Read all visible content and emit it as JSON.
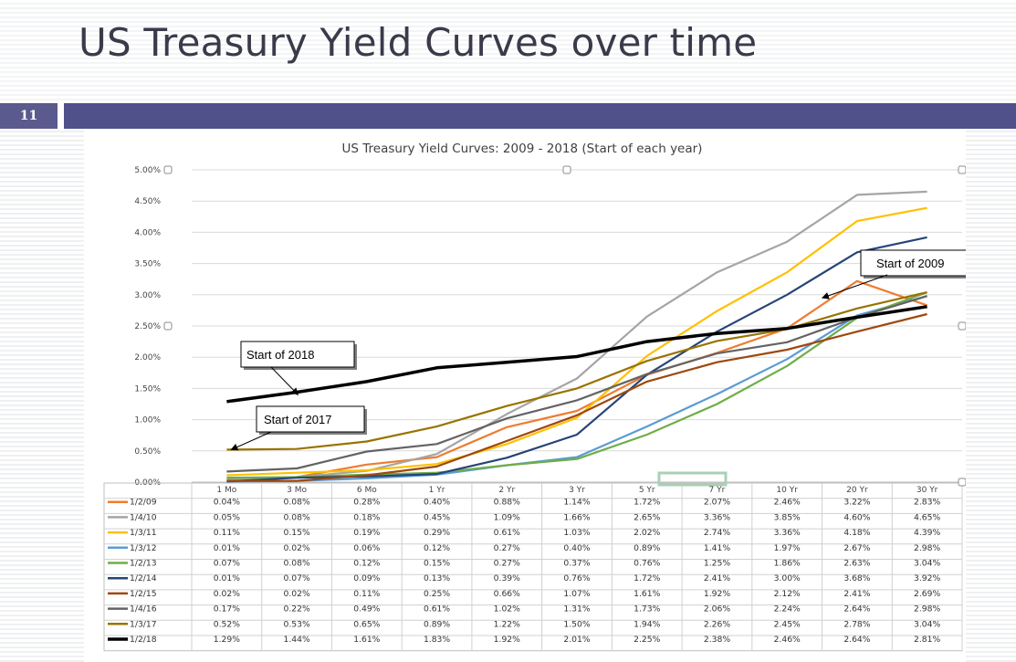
{
  "slide": {
    "title": "US Treasury Yield Curves over time",
    "page_number": "11",
    "header_bar_color": "#50508a"
  },
  "chart_data": {
    "type": "line",
    "title": "US Treasury Yield Curves: 2009 - 2018 (Start of each year)",
    "xlabel": "",
    "ylabel": "",
    "categories": [
      "1 Mo",
      "3 Mo",
      "6 Mo",
      "1 Yr",
      "2 Yr",
      "3 Yr",
      "5 Yr",
      "7 Yr",
      "10 Yr",
      "20 Yr",
      "30 Yr"
    ],
    "ylim": [
      0,
      5
    ],
    "y_ticks": [
      "0.00%",
      "0.50%",
      "1.00%",
      "1.50%",
      "2.00%",
      "2.50%",
      "3.00%",
      "3.50%",
      "4.00%",
      "4.50%",
      "5.00%"
    ],
    "grid": true,
    "legend": "data table below chart",
    "series": [
      {
        "name": "1/2/09",
        "color": "#ed7d31",
        "labels": [
          "0.04%",
          "0.08%",
          "0.28%",
          "0.40%",
          "0.88%",
          "1.14%",
          "1.72%",
          "2.07%",
          "2.46%",
          "3.22%",
          "2.83%"
        ],
        "values": [
          0.04,
          0.08,
          0.28,
          0.4,
          0.88,
          1.14,
          1.72,
          2.07,
          2.46,
          3.22,
          2.83
        ]
      },
      {
        "name": "1/4/10",
        "color": "#a5a5a5",
        "labels": [
          "0.05%",
          "0.08%",
          "0.18%",
          "0.45%",
          "1.09%",
          "1.66%",
          "2.65%",
          "3.36%",
          "3.85%",
          "4.60%",
          "4.65%"
        ],
        "values": [
          0.05,
          0.08,
          0.18,
          0.45,
          1.09,
          1.66,
          2.65,
          3.36,
          3.85,
          4.6,
          4.65
        ]
      },
      {
        "name": "1/3/11",
        "color": "#ffc000",
        "labels": [
          "0.11%",
          "0.15%",
          "0.19%",
          "0.29%",
          "0.61%",
          "1.03%",
          "2.02%",
          "2.74%",
          "3.36%",
          "4.18%",
          "4.39%"
        ],
        "values": [
          0.11,
          0.15,
          0.19,
          0.29,
          0.61,
          1.03,
          2.02,
          2.74,
          3.36,
          4.18,
          4.39
        ]
      },
      {
        "name": "1/3/12",
        "color": "#5b9bd5",
        "labels": [
          "0.01%",
          "0.02%",
          "0.06%",
          "0.12%",
          "0.27%",
          "0.40%",
          "0.89%",
          "1.41%",
          "1.97%",
          "2.67%",
          "2.98%"
        ],
        "values": [
          0.01,
          0.02,
          0.06,
          0.12,
          0.27,
          0.4,
          0.89,
          1.41,
          1.97,
          2.67,
          2.98
        ]
      },
      {
        "name": "1/2/13",
        "color": "#70ad47",
        "labels": [
          "0.07%",
          "0.08%",
          "0.12%",
          "0.15%",
          "0.27%",
          "0.37%",
          "0.76%",
          "1.25%",
          "1.86%",
          "2.63%",
          "3.04%"
        ],
        "values": [
          0.07,
          0.08,
          0.12,
          0.15,
          0.27,
          0.37,
          0.76,
          1.25,
          1.86,
          2.63,
          3.04
        ]
      },
      {
        "name": "1/2/14",
        "color": "#264478",
        "labels": [
          "0.01%",
          "0.07%",
          "0.09%",
          "0.13%",
          "0.39%",
          "0.76%",
          "1.72%",
          "2.41%",
          "3.00%",
          "3.68%",
          "3.92%"
        ],
        "values": [
          0.01,
          0.07,
          0.09,
          0.13,
          0.39,
          0.76,
          1.72,
          2.41,
          3.0,
          3.68,
          3.92
        ]
      },
      {
        "name": "1/2/15",
        "color": "#9e480e",
        "labels": [
          "0.02%",
          "0.02%",
          "0.11%",
          "0.25%",
          "0.66%",
          "1.07%",
          "1.61%",
          "1.92%",
          "2.12%",
          "2.41%",
          "2.69%"
        ],
        "values": [
          0.02,
          0.02,
          0.11,
          0.25,
          0.66,
          1.07,
          1.61,
          1.92,
          2.12,
          2.41,
          2.69
        ]
      },
      {
        "name": "1/4/16",
        "color": "#636363",
        "labels": [
          "0.17%",
          "0.22%",
          "0.49%",
          "0.61%",
          "1.02%",
          "1.31%",
          "1.73%",
          "2.06%",
          "2.24%",
          "2.64%",
          "2.98%"
        ],
        "values": [
          0.17,
          0.22,
          0.49,
          0.61,
          1.02,
          1.31,
          1.73,
          2.06,
          2.24,
          2.64,
          2.98
        ]
      },
      {
        "name": "1/3/17",
        "color": "#997300",
        "labels": [
          "0.52%",
          "0.53%",
          "0.65%",
          "0.89%",
          "1.22%",
          "1.50%",
          "1.94%",
          "2.26%",
          "2.45%",
          "2.78%",
          "3.04%"
        ],
        "values": [
          0.52,
          0.53,
          0.65,
          0.89,
          1.22,
          1.5,
          1.94,
          2.26,
          2.45,
          2.78,
          3.04
        ]
      },
      {
        "name": "1/2/18",
        "color": "#000000",
        "labels": [
          "1.29%",
          "1.44%",
          "1.61%",
          "1.83%",
          "1.92%",
          "2.01%",
          "2.25%",
          "2.38%",
          "2.46%",
          "2.64%",
          "2.81%"
        ],
        "values": [
          1.29,
          1.44,
          1.61,
          1.83,
          1.92,
          2.01,
          2.25,
          2.38,
          2.46,
          2.64,
          2.81
        ]
      }
    ],
    "annotations": [
      {
        "text": "Start of 2018",
        "points_to": "1/2/18"
      },
      {
        "text": "Start of 2017",
        "points_to": "1/3/17"
      },
      {
        "text": "Start of 2009",
        "points_to": "1/2/09"
      }
    ]
  }
}
